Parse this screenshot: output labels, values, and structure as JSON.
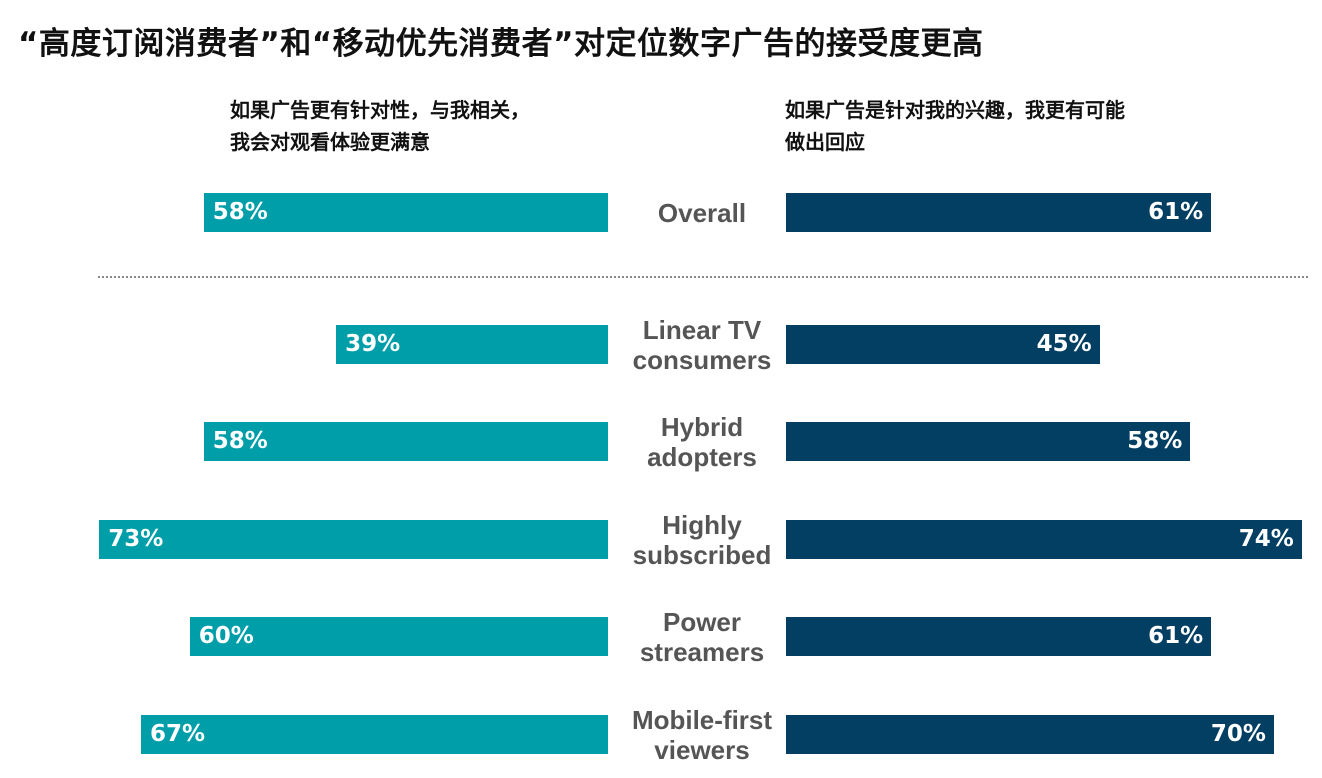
{
  "chart_data": {
    "type": "bar",
    "title": "“高度订阅消费者”和“移动优先消费者”对定位数字广告的接受度更高",
    "left_subtitle": [
      "如果广告更有针对性，与我相关，",
      "我会对观看体验更满意"
    ],
    "right_subtitle": [
      "如果广告是针对我的兴趣，我更有可能",
      "做出回应"
    ],
    "categories": [
      [
        "Overall"
      ],
      [
        "Linear TV",
        "consumers"
      ],
      [
        "Hybrid",
        "adopters"
      ],
      [
        "Highly",
        "subscribed"
      ],
      [
        "Power",
        "streamers"
      ],
      [
        "Mobile-first",
        "viewers"
      ]
    ],
    "series": [
      {
        "name": "如果广告更有针对性，与我相关，我会对观看体验更满意",
        "values": [
          58,
          39,
          58,
          73,
          60,
          67
        ],
        "color": "#009EA9"
      },
      {
        "name": "如果广告是针对我的兴趣，我更有可能做出回应",
        "values": [
          61,
          45,
          58,
          74,
          61,
          70
        ],
        "color": "#033E63"
      }
    ],
    "value_suffix": "%",
    "xlim": [
      0,
      100
    ],
    "layout": "diverging back-to-back horizontal bars, categories in the middle, dotted separator after Overall"
  }
}
